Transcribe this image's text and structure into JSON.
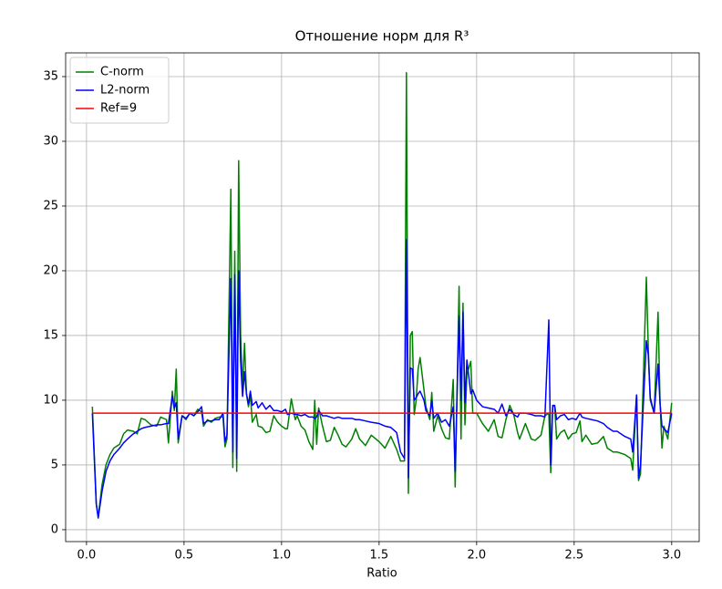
{
  "chart_data": {
    "type": "line",
    "title": "Отношение норм для R³",
    "x_label": "Ratio",
    "x": [
      0.03,
      0.05,
      0.06,
      0.08,
      0.1,
      0.12,
      0.14,
      0.17,
      0.19,
      0.21,
      0.24,
      0.26,
      0.28,
      0.3,
      0.33,
      0.36,
      0.38,
      0.41,
      0.42,
      0.44,
      0.45,
      0.46,
      0.47,
      0.49,
      0.51,
      0.53,
      0.55,
      0.57,
      0.59,
      0.6,
      0.62,
      0.64,
      0.66,
      0.68,
      0.7,
      0.71,
      0.72,
      0.74,
      0.75,
      0.76,
      0.77,
      0.78,
      0.79,
      0.8,
      0.81,
      0.82,
      0.83,
      0.84,
      0.85,
      0.87,
      0.88,
      0.9,
      0.92,
      0.94,
      0.96,
      0.98,
      1.0,
      1.02,
      1.03,
      1.05,
      1.07,
      1.08,
      1.1,
      1.12,
      1.14,
      1.16,
      1.17,
      1.18,
      1.19,
      1.21,
      1.23,
      1.25,
      1.27,
      1.29,
      1.31,
      1.33,
      1.36,
      1.38,
      1.4,
      1.43,
      1.46,
      1.5,
      1.53,
      1.56,
      1.59,
      1.61,
      1.63,
      1.64,
      1.65,
      1.66,
      1.67,
      1.68,
      1.69,
      1.7,
      1.71,
      1.73,
      1.74,
      1.76,
      1.77,
      1.78,
      1.8,
      1.82,
      1.84,
      1.86,
      1.88,
      1.89,
      1.91,
      1.92,
      1.93,
      1.94,
      1.95,
      1.97,
      1.98,
      2.0,
      2.03,
      2.06,
      2.09,
      2.11,
      2.13,
      2.15,
      2.17,
      2.19,
      2.21,
      2.22,
      2.25,
      2.28,
      2.3,
      2.33,
      2.35,
      2.37,
      2.38,
      2.39,
      2.4,
      2.41,
      2.43,
      2.45,
      2.47,
      2.49,
      2.51,
      2.53,
      2.54,
      2.56,
      2.59,
      2.62,
      2.65,
      2.67,
      2.7,
      2.72,
      2.76,
      2.79,
      2.8,
      2.82,
      2.83,
      2.84,
      2.87,
      2.88,
      2.89,
      2.91,
      2.93,
      2.94,
      2.95,
      2.96,
      2.98,
      3.0
    ],
    "series": [
      {
        "name": "C-norm",
        "color": "#008000",
        "values": [
          9.5,
          2.0,
          1.0,
          3.5,
          5.0,
          5.8,
          6.3,
          6.6,
          7.4,
          7.7,
          7.6,
          7.4,
          8.6,
          8.5,
          8.1,
          8.0,
          8.7,
          8.5,
          6.7,
          10.7,
          9.2,
          12.4,
          6.7,
          8.8,
          8.5,
          9.0,
          8.8,
          9.3,
          9.1,
          8.0,
          8.5,
          8.3,
          8.6,
          8.7,
          8.7,
          6.4,
          7.0,
          26.3,
          4.8,
          21.5,
          4.5,
          28.5,
          15.0,
          11.0,
          14.4,
          10.5,
          9.5,
          10.4,
          8.3,
          8.9,
          8.0,
          7.9,
          7.5,
          7.6,
          8.8,
          8.3,
          8.0,
          7.8,
          7.8,
          10.1,
          8.5,
          8.8,
          8.0,
          7.7,
          6.8,
          6.2,
          10.0,
          6.6,
          9.4,
          8.0,
          6.8,
          6.9,
          7.9,
          7.3,
          6.6,
          6.4,
          7.0,
          7.8,
          7.0,
          6.5,
          7.3,
          6.8,
          6.3,
          7.2,
          6.2,
          5.3,
          5.3,
          35.3,
          2.8,
          15.0,
          15.3,
          8.9,
          10.0,
          12.4,
          13.3,
          10.8,
          9.5,
          8.5,
          10.6,
          7.6,
          8.8,
          7.8,
          7.1,
          7.0,
          11.6,
          3.3,
          18.8,
          7.0,
          17.5,
          8.1,
          12.0,
          13.0,
          9.0,
          9.0,
          8.2,
          7.6,
          8.5,
          7.2,
          7.1,
          8.5,
          9.6,
          8.9,
          7.5,
          7.0,
          8.2,
          7.0,
          6.9,
          7.3,
          8.8,
          9.0,
          4.4,
          9.6,
          9.5,
          7.0,
          7.5,
          7.7,
          7.0,
          7.4,
          7.5,
          8.4,
          6.8,
          7.3,
          6.6,
          6.7,
          7.2,
          6.3,
          6.0,
          6.0,
          5.8,
          5.5,
          4.6,
          10.4,
          3.8,
          4.3,
          19.5,
          14.0,
          10.0,
          9.0,
          16.8,
          10.0,
          6.3,
          8.0,
          7.0,
          9.8
        ]
      },
      {
        "name": "L2-norm",
        "color": "#0000ff",
        "values": [
          9.0,
          2.0,
          0.9,
          3.0,
          4.5,
          5.3,
          5.8,
          6.3,
          6.7,
          7.0,
          7.4,
          7.6,
          7.8,
          7.9,
          8.0,
          8.1,
          8.1,
          8.2,
          8.2,
          10.3,
          9.4,
          9.8,
          7.0,
          8.8,
          8.6,
          9.0,
          8.8,
          9.1,
          9.5,
          8.2,
          8.4,
          8.4,
          8.5,
          8.5,
          9.0,
          6.8,
          7.3,
          19.4,
          6.0,
          19.7,
          5.5,
          20.0,
          13.0,
          10.3,
          12.2,
          10.5,
          9.7,
          10.7,
          9.6,
          9.9,
          9.4,
          9.8,
          9.3,
          9.6,
          9.2,
          9.2,
          9.1,
          9.3,
          8.9,
          9.0,
          8.9,
          8.9,
          8.8,
          8.9,
          8.7,
          8.7,
          8.6,
          8.7,
          9.2,
          8.8,
          8.8,
          8.7,
          8.6,
          8.7,
          8.6,
          8.6,
          8.6,
          8.5,
          8.5,
          8.4,
          8.3,
          8.2,
          8.0,
          7.9,
          7.5,
          6.0,
          5.5,
          22.4,
          4.0,
          12.5,
          12.4,
          10.0,
          10.2,
          10.5,
          10.7,
          10.0,
          9.2,
          8.8,
          10.0,
          8.6,
          9.0,
          8.3,
          8.5,
          8.0,
          9.5,
          4.5,
          16.5,
          10.0,
          16.8,
          9.8,
          13.1,
          10.5,
          10.8,
          10.0,
          9.5,
          9.4,
          9.3,
          9.0,
          9.7,
          8.8,
          9.3,
          8.9,
          8.7,
          9.0,
          9.0,
          8.9,
          8.8,
          8.8,
          8.7,
          16.2,
          5.0,
          9.6,
          9.6,
          8.5,
          8.8,
          8.9,
          8.5,
          8.6,
          8.5,
          9.0,
          8.7,
          8.6,
          8.5,
          8.4,
          8.2,
          7.9,
          7.6,
          7.6,
          7.2,
          7.0,
          6.0,
          10.4,
          4.0,
          5.0,
          14.6,
          13.5,
          10.2,
          9.0,
          12.8,
          9.8,
          8.0,
          7.8,
          7.5,
          9.0
        ]
      }
    ],
    "ref_line": {
      "name": "Ref=9",
      "color": "#ff0000",
      "value": 9
    },
    "xlim": [
      -0.107,
      3.141
    ],
    "ylim": [
      -0.92,
      36.83
    ],
    "xticks": [
      {
        "value": 0,
        "label": "0.0"
      },
      0.5,
      {
        "value": 1,
        "label": "1.0"
      },
      1.5,
      {
        "value": 2,
        "label": "2.0"
      },
      2.5,
      {
        "value": 3,
        "label": "3.0"
      }
    ],
    "yticks": [
      0,
      5,
      10,
      15,
      20,
      25,
      30,
      35
    ],
    "grid": true,
    "legend": "upper left"
  }
}
